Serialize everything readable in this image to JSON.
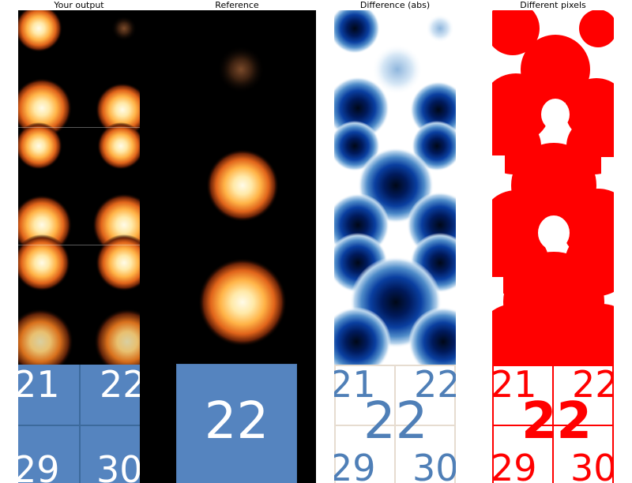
{
  "titles": {
    "output": "Your output",
    "reference": "Reference",
    "difference": "Difference (abs)",
    "pixels": "Different pixels"
  },
  "tiles": {
    "output": [
      "21",
      "22",
      "29",
      "30"
    ],
    "reference": "22",
    "difference": [
      "21",
      "22",
      "22",
      "29",
      "30"
    ],
    "pixels": [
      "21",
      "22",
      "22",
      "29",
      "30"
    ]
  },
  "colors": {
    "tile_blue": "#5584bf",
    "diff_text": "#4f7fb7",
    "mismatch_red": "#ff0000",
    "background": "#000000"
  }
}
